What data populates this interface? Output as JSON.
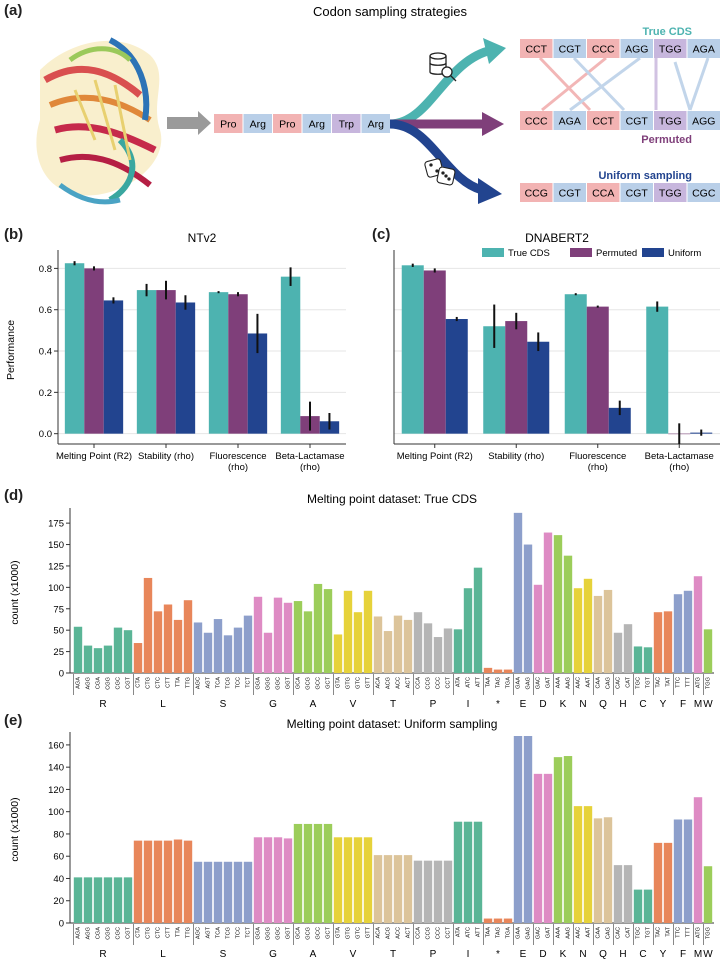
{
  "panels": {
    "a": "(a)",
    "b": "(b)",
    "c": "(c)",
    "d": "(d)",
    "e": "(e)"
  },
  "colors": {
    "true_cds": "#4db3b0",
    "permuted": "#7f3f7a",
    "uniform": "#22448f",
    "pro": "#f2b3b3",
    "arg": "#b9cfe8",
    "trp": "#c7b6dd"
  },
  "schematic": {
    "title": "Codon sampling strategies",
    "protein_sequence": [
      "Pro",
      "Arg",
      "Pro",
      "Arg",
      "Trp",
      "Arg"
    ],
    "true_cds": {
      "label": "True CDS",
      "codons": [
        "CCT",
        "CGT",
        "CCC",
        "AGG",
        "TGG",
        "AGA"
      ]
    },
    "permuted": {
      "label": "Permuted",
      "codons": [
        "CCC",
        "AGA",
        "CCT",
        "CGT",
        "TGG",
        "AGG"
      ]
    },
    "uniform": {
      "label": "Uniform sampling",
      "codons": [
        "CCG",
        "CGT",
        "CCA",
        "CGT",
        "TGG",
        "CGC"
      ]
    }
  },
  "legend": {
    "true_cds": "True CDS",
    "permuted": "Permuted",
    "uniform": "Uniform"
  },
  "chart_data": [
    {
      "id": "b",
      "type": "bar",
      "title": "NTv2",
      "ylabel": "Performance",
      "ylim": [
        -0.05,
        0.86
      ],
      "yticks": [
        "0.0",
        "0.2",
        "0.4",
        "0.6",
        "0.8"
      ],
      "categories": [
        "Melting Point (R2)",
        "Stability (rho)",
        "Fluorescence\n(rho)",
        "Beta-Lactamase\n(rho)"
      ],
      "series": [
        {
          "name": "True CDS",
          "values": [
            0.825,
            0.695,
            0.685,
            0.76
          ],
          "err": [
            0.01,
            0.03,
            0.005,
            0.045
          ]
        },
        {
          "name": "Permuted",
          "values": [
            0.8,
            0.695,
            0.675,
            0.085
          ],
          "err": [
            0.01,
            0.045,
            0.01,
            0.07
          ]
        },
        {
          "name": "Uniform",
          "values": [
            0.645,
            0.635,
            0.485,
            0.06
          ],
          "err": [
            0.015,
            0.035,
            0.095,
            0.04
          ]
        }
      ]
    },
    {
      "id": "c",
      "type": "bar",
      "title": "DNABERT2",
      "ylim": [
        -0.05,
        0.86
      ],
      "categories": [
        "Melting Point (R2)",
        "Stability (rho)",
        "Fluorescence\n(rho)",
        "Beta-Lactamase\n(rho)"
      ],
      "series": [
        {
          "name": "True CDS",
          "values": [
            0.815,
            0.52,
            0.675,
            0.615
          ],
          "err": [
            0.008,
            0.105,
            0.005,
            0.025
          ]
        },
        {
          "name": "Permuted",
          "values": [
            0.79,
            0.545,
            0.615,
            0.0
          ],
          "err": [
            0.01,
            0.04,
            0.005,
            0.05
          ]
        },
        {
          "name": "Uniform",
          "values": [
            0.555,
            0.445,
            0.125,
            0.005
          ],
          "err": [
            0.01,
            0.045,
            0.035,
            0.015
          ]
        }
      ]
    },
    {
      "id": "d",
      "type": "bar",
      "title": "Melting point dataset: True CDS",
      "ylabel": "count (x1000)",
      "ylim": [
        0,
        188
      ],
      "yticks": [
        "0",
        "25",
        "50",
        "75",
        "100",
        "125",
        "150",
        "175"
      ],
      "codons": [
        "AGA",
        "AGG",
        "CGA",
        "CGG",
        "CGC",
        "CGT",
        "CTA",
        "CTG",
        "CTC",
        "CTT",
        "TTA",
        "TTG",
        "AGC",
        "AGT",
        "TCA",
        "TCG",
        "TCC",
        "TCT",
        "GGA",
        "GGG",
        "GGC",
        "GGT",
        "GCA",
        "GCG",
        "GCC",
        "GCT",
        "GTA",
        "GTG",
        "GTC",
        "GTT",
        "ACA",
        "ACG",
        "ACC",
        "ACT",
        "CCA",
        "CCG",
        "CCC",
        "CCT",
        "ATA",
        "ATC",
        "ATT",
        "TAA",
        "TAG",
        "TGA",
        "GAA",
        "GAG",
        "GAC",
        "GAT",
        "AAA",
        "AAG",
        "AAC",
        "AAT",
        "CAA",
        "CAG",
        "CAC",
        "CAT",
        "TGC",
        "TGT",
        "TAC",
        "TAT",
        "TTC",
        "TTT",
        "ATG",
        "TGG"
      ],
      "amino_acids": [
        "R",
        "R",
        "R",
        "R",
        "R",
        "R",
        "L",
        "L",
        "L",
        "L",
        "L",
        "L",
        "S",
        "S",
        "S",
        "S",
        "S",
        "S",
        "G",
        "G",
        "G",
        "G",
        "A",
        "A",
        "A",
        "A",
        "V",
        "V",
        "V",
        "V",
        "T",
        "T",
        "T",
        "T",
        "P",
        "P",
        "P",
        "P",
        "I",
        "I",
        "I",
        "*",
        "*",
        "*",
        "E",
        "E",
        "D",
        "D",
        "K",
        "K",
        "N",
        "N",
        "Q",
        "Q",
        "H",
        "H",
        "C",
        "C",
        "Y",
        "Y",
        "F",
        "F",
        "M",
        "W"
      ],
      "values": [
        54,
        32,
        29,
        32,
        53,
        50,
        35,
        111,
        72,
        80,
        62,
        85,
        59,
        47,
        63,
        44,
        53,
        67,
        89,
        47,
        88,
        82,
        84,
        72,
        104,
        98,
        45,
        96,
        71,
        96,
        66,
        49,
        67,
        62,
        71,
        58,
        42,
        52,
        51,
        99,
        123,
        6,
        4,
        4,
        187,
        150,
        103,
        164,
        161,
        137,
        99,
        110,
        90,
        97,
        47,
        57,
        31,
        30,
        71,
        72,
        92,
        96,
        113,
        51
      ]
    },
    {
      "id": "e",
      "type": "bar",
      "title": "Melting point dataset: Uniform sampling",
      "ylabel": "count (x1000)",
      "ylim": [
        0,
        168
      ],
      "yticks": [
        "0",
        "20",
        "40",
        "60",
        "80",
        "100",
        "120",
        "140",
        "160"
      ],
      "codons": [
        "AGA",
        "AGG",
        "CGA",
        "CGG",
        "CGC",
        "CGT",
        "CTA",
        "CTG",
        "CTC",
        "CTT",
        "TTA",
        "TTG",
        "AGC",
        "AGT",
        "TCA",
        "TCG",
        "TCC",
        "TCT",
        "GGA",
        "GGG",
        "GGC",
        "GGT",
        "GCA",
        "GCG",
        "GCC",
        "GCT",
        "GTA",
        "GTG",
        "GTC",
        "GTT",
        "ACA",
        "ACG",
        "ACC",
        "ACT",
        "CCA",
        "CCG",
        "CCC",
        "CCT",
        "ATA",
        "ATC",
        "ATT",
        "TAA",
        "TAG",
        "TGA",
        "GAA",
        "GAG",
        "GAC",
        "GAT",
        "AAA",
        "AAG",
        "AAC",
        "AAT",
        "CAA",
        "CAG",
        "CAC",
        "CAT",
        "TGC",
        "TGT",
        "TAC",
        "TAT",
        "TTC",
        "TTT",
        "ATG",
        "TGG"
      ],
      "amino_acids": [
        "R",
        "R",
        "R",
        "R",
        "R",
        "R",
        "L",
        "L",
        "L",
        "L",
        "L",
        "L",
        "S",
        "S",
        "S",
        "S",
        "S",
        "S",
        "G",
        "G",
        "G",
        "G",
        "A",
        "A",
        "A",
        "A",
        "V",
        "V",
        "V",
        "V",
        "T",
        "T",
        "T",
        "T",
        "P",
        "P",
        "P",
        "P",
        "I",
        "I",
        "I",
        "*",
        "*",
        "*",
        "E",
        "E",
        "D",
        "D",
        "K",
        "K",
        "N",
        "N",
        "Q",
        "Q",
        "H",
        "H",
        "C",
        "C",
        "Y",
        "Y",
        "F",
        "F",
        "M",
        "W"
      ],
      "values": [
        41,
        41,
        41,
        41,
        41,
        41,
        74,
        74,
        74,
        74,
        75,
        74,
        55,
        55,
        55,
        55,
        55,
        55,
        77,
        77,
        77,
        76,
        89,
        89,
        89,
        89,
        77,
        77,
        77,
        77,
        61,
        61,
        61,
        61,
        56,
        56,
        56,
        56,
        91,
        91,
        91,
        4,
        4,
        4,
        168,
        168,
        134,
        134,
        149,
        150,
        105,
        105,
        94,
        95,
        52,
        52,
        30,
        30,
        72,
        72,
        93,
        93,
        113,
        51
      ]
    }
  ]
}
